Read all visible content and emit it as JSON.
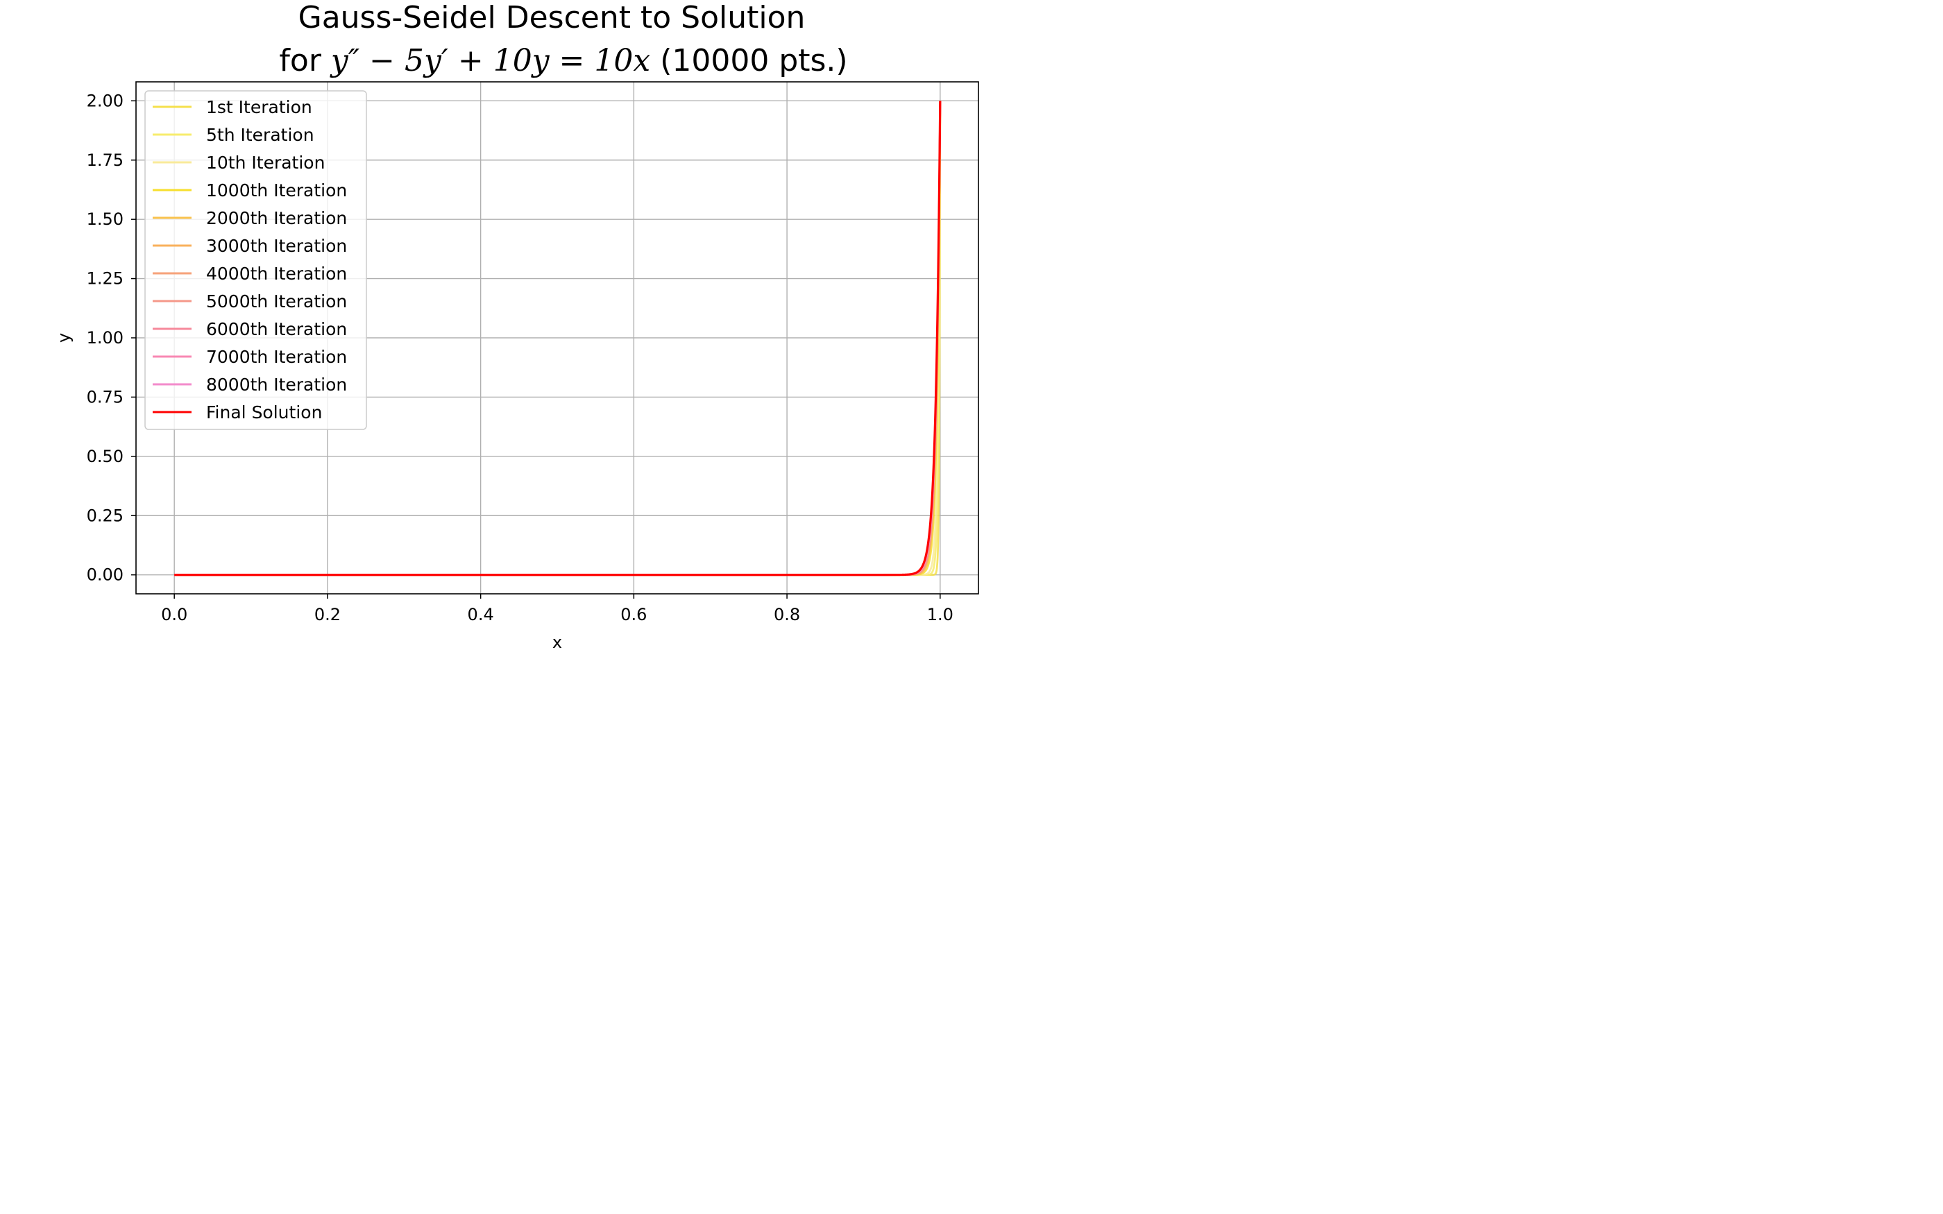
{
  "chart_data": {
    "type": "line",
    "title": {
      "line1": "Gauss-Seidel Descent to Solution",
      "line2_prefix": "for ",
      "equation": "y″ − 5y′ + 10y = 10x",
      "line2_suffix": " (10000 pts.)"
    },
    "xlabel": "x",
    "ylabel": "y",
    "xlim": [
      -0.05,
      1.05
    ],
    "ylim": [
      -0.08,
      2.08
    ],
    "xticks": [
      0.0,
      0.2,
      0.4,
      0.6,
      0.8,
      1.0
    ],
    "xtick_labels": [
      "0.0",
      "0.2",
      "0.4",
      "0.6",
      "0.8",
      "1.0"
    ],
    "yticks": [
      0.0,
      0.25,
      0.5,
      0.75,
      1.0,
      1.25,
      1.5,
      1.75,
      2.0
    ],
    "ytick_labels": [
      "0.00",
      "0.25",
      "0.50",
      "0.75",
      "1.00",
      "1.25",
      "1.50",
      "1.75",
      "2.00"
    ],
    "grid": true,
    "legend_position": "upper-left",
    "series": [
      {
        "name": "1st Iteration",
        "color": "#f5e04c",
        "boundary_decay": 0.001,
        "values": [
          [
            0.0,
            0.0
          ],
          [
            0.5,
            0.0
          ],
          [
            0.995,
            0.0
          ],
          [
            1.0,
            2.0
          ]
        ]
      },
      {
        "name": "5th Iteration",
        "color": "#f7ec6e",
        "boundary_decay": 0.002,
        "values": [
          [
            0.0,
            0.0
          ],
          [
            0.5,
            0.0
          ],
          [
            0.99,
            0.0
          ],
          [
            1.0,
            2.0
          ]
        ]
      },
      {
        "name": "10th Iteration",
        "color": "#f8ea9a",
        "boundary_decay": 0.0028,
        "values": [
          [
            0.0,
            0.0
          ],
          [
            0.5,
            0.0
          ],
          [
            0.985,
            0.0
          ],
          [
            1.0,
            2.0
          ]
        ]
      },
      {
        "name": "1000th Iteration",
        "color": "#f7df2e",
        "boundary_decay": 0.004,
        "values": [
          [
            0.0,
            0.0
          ],
          [
            0.5,
            0.0
          ],
          [
            0.98,
            0.0
          ],
          [
            1.0,
            2.0
          ]
        ]
      },
      {
        "name": "2000th Iteration",
        "color": "#f9c24d",
        "boundary_decay": 0.0045,
        "values": [
          [
            0.0,
            0.0
          ],
          [
            0.5,
            0.0
          ],
          [
            0.975,
            0.0
          ],
          [
            1.0,
            2.0
          ]
        ]
      },
      {
        "name": "3000th Iteration",
        "color": "#f9b15c",
        "boundary_decay": 0.0048,
        "values": [
          [
            0.0,
            0.0
          ],
          [
            0.5,
            0.0
          ],
          [
            0.975,
            0.0
          ],
          [
            1.0,
            2.0
          ]
        ]
      },
      {
        "name": "4000th Iteration",
        "color": "#f6a27a",
        "boundary_decay": 0.005,
        "values": [
          [
            0.0,
            0.0
          ],
          [
            0.5,
            0.0
          ],
          [
            0.972,
            0.0
          ],
          [
            1.0,
            2.0
          ]
        ]
      },
      {
        "name": "5000th Iteration",
        "color": "#f5988a",
        "boundary_decay": 0.0052,
        "values": [
          [
            0.0,
            0.0
          ],
          [
            0.5,
            0.0
          ],
          [
            0.97,
            0.0
          ],
          [
            1.0,
            2.0
          ]
        ]
      },
      {
        "name": "6000th Iteration",
        "color": "#f6899b",
        "boundary_decay": 0.0054,
        "values": [
          [
            0.0,
            0.0
          ],
          [
            0.5,
            0.0
          ],
          [
            0.97,
            0.0
          ],
          [
            1.0,
            2.0
          ]
        ]
      },
      {
        "name": "7000th Iteration",
        "color": "#f888b3",
        "boundary_decay": 0.0055,
        "values": [
          [
            0.0,
            0.0
          ],
          [
            0.5,
            0.0
          ],
          [
            0.968,
            0.0
          ],
          [
            1.0,
            2.0
          ]
        ]
      },
      {
        "name": "8000th Iteration",
        "color": "#f38bcb",
        "boundary_decay": 0.0056,
        "values": [
          [
            0.0,
            0.0
          ],
          [
            0.5,
            0.0
          ],
          [
            0.968,
            0.0
          ],
          [
            1.0,
            2.0
          ]
        ]
      },
      {
        "name": "Final Solution",
        "color": "#ff0000",
        "boundary_decay": 0.0058,
        "values": [
          [
            0.0,
            0.0
          ],
          [
            0.5,
            0.0
          ],
          [
            0.965,
            0.0
          ],
          [
            1.0,
            2.0
          ]
        ]
      }
    ]
  }
}
